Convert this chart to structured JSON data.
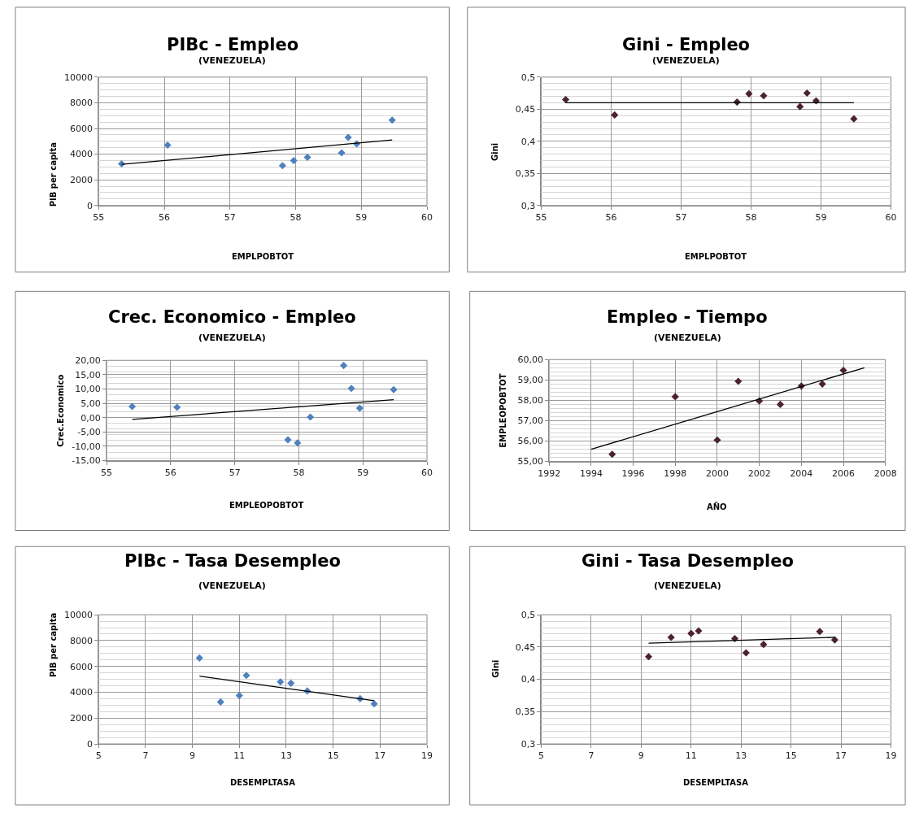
{
  "chart_data": [
    {
      "type": "scatter",
      "title": "PIBc - Empleo",
      "subtitle": "(VENEZUELA)",
      "xlabel": "EMPLPOBTOT",
      "ylabel": "PIB per capita",
      "marker": "diamond",
      "grid": true,
      "series": [
        {
          "color": "#4f81bd",
          "x": [
            55.35,
            56.05,
            57.8,
            57.97,
            58.18,
            58.7,
            58.8,
            58.93,
            59.47
          ],
          "values": [
            3250,
            4700,
            3100,
            3500,
            3750,
            4100,
            5300,
            4800,
            6650
          ]
        },
        {
          "type": "line",
          "marker": "none",
          "color": "#000000",
          "x": [
            55.35,
            59.47
          ],
          "values": [
            3200,
            5100
          ]
        }
      ],
      "xlim": [
        55,
        60
      ],
      "xticks": [
        55,
        56,
        57,
        58,
        59,
        60
      ],
      "ylim": [
        0,
        10000
      ],
      "yticks": [
        0,
        2000,
        4000,
        6000,
        8000,
        10000
      ]
    },
    {
      "type": "scatter",
      "title": "Gini - Empleo",
      "subtitle": "(VENEZUELA)",
      "xlabel": "EMPLPOBTOT",
      "ylabel": "Gini",
      "marker": "diamond",
      "grid": true,
      "series": [
        {
          "color": "#4b2233",
          "x": [
            55.35,
            56.05,
            57.8,
            57.97,
            58.18,
            58.7,
            58.8,
            58.93,
            59.47
          ],
          "values": [
            0.465,
            0.441,
            0.461,
            0.474,
            0.471,
            0.454,
            0.475,
            0.463,
            0.435
          ]
        },
        {
          "type": "line",
          "marker": "none",
          "color": "#000000",
          "x": [
            55.35,
            59.47
          ],
          "values": [
            0.46,
            0.46
          ]
        }
      ],
      "xlim": [
        55,
        60
      ],
      "xticks": [
        55,
        56,
        57,
        58,
        59,
        60
      ],
      "ylim": [
        0.3,
        0.5
      ],
      "yticks": [
        {
          "value": 0.3,
          "label": "0,3"
        },
        {
          "value": 0.35,
          "label": "0,35"
        },
        {
          "value": 0.4,
          "label": "0,4"
        },
        {
          "value": 0.45,
          "label": "0,45"
        },
        {
          "value": 0.5,
          "label": "0,5"
        }
      ]
    },
    {
      "type": "scatter",
      "title": "Crec. Economico - Empleo",
      "subtitle": "(VENEZUELA)",
      "xlabel": "EMPLEOPOBTOT",
      "ylabel": "Crec.Economico",
      "marker": "diamond",
      "grid": true,
      "series": [
        {
          "color": "#4f81bd",
          "x": [
            55.4,
            56.1,
            57.83,
            57.98,
            58.18,
            58.7,
            58.82,
            58.95,
            59.48
          ],
          "values": [
            3.9,
            3.6,
            -7.7,
            -8.8,
            0.2,
            18.2,
            10.2,
            3.3,
            9.8
          ]
        },
        {
          "type": "line",
          "marker": "none",
          "color": "#000000",
          "x": [
            55.4,
            59.48
          ],
          "values": [
            -0.6,
            6.3
          ]
        }
      ],
      "xlim": [
        55,
        60
      ],
      "xticks": [
        55,
        56,
        57,
        58,
        59,
        60
      ],
      "ylim": [
        -15,
        20
      ],
      "yticks": [
        {
          "value": -15,
          "label": "-15,00"
        },
        {
          "value": -10,
          "label": "-10,00"
        },
        {
          "value": -5,
          "label": "-5,00"
        },
        {
          "value": 0,
          "label": "0,00"
        },
        {
          "value": 5,
          "label": "5,00"
        },
        {
          "value": 10,
          "label": "10,00"
        },
        {
          "value": 15,
          "label": "15,00"
        },
        {
          "value": 20,
          "label": "20,00"
        }
      ]
    },
    {
      "type": "scatter",
      "title": "Empleo - Tiempo",
      "subtitle": "(VENEZUELA)",
      "xlabel": "AÑO",
      "ylabel": "EMPLEOPOBTOT",
      "marker": "diamond",
      "grid": true,
      "series": [
        {
          "color": "#4b2233",
          "x": [
            1995,
            1998,
            2000,
            2001,
            2002,
            2003,
            2004,
            2005,
            2006
          ],
          "values": [
            55.35,
            58.18,
            56.05,
            58.93,
            57.97,
            57.8,
            58.7,
            58.8,
            59.47
          ]
        },
        {
          "type": "line",
          "marker": "none",
          "color": "#000000",
          "x": [
            1994,
            2007
          ],
          "values": [
            55.6,
            59.6
          ]
        }
      ],
      "xlim": [
        1992,
        2008
      ],
      "xticks": [
        1992,
        1994,
        1996,
        1998,
        2000,
        2002,
        2004,
        2006,
        2008
      ],
      "ylim": [
        55,
        60
      ],
      "yticks": [
        {
          "value": 55,
          "label": "55,00"
        },
        {
          "value": 56,
          "label": "56,00"
        },
        {
          "value": 57,
          "label": "57,00"
        },
        {
          "value": 58,
          "label": "58,00"
        },
        {
          "value": 59,
          "label": "59,00"
        },
        {
          "value": 60,
          "label": "60,00"
        }
      ]
    },
    {
      "type": "scatter",
      "title": "PIBc - Tasa Desempleo",
      "subtitle": "(VENEZUELA)",
      "xlabel": "DESEMPLTASA",
      "ylabel": "PIB per capita",
      "marker": "diamond",
      "grid": true,
      "series": [
        {
          "color": "#4f81bd",
          "x": [
            9.3,
            10.2,
            11.0,
            11.3,
            12.75,
            13.2,
            13.9,
            16.15,
            16.75
          ],
          "values": [
            6650,
            3250,
            3750,
            5300,
            4800,
            4700,
            4100,
            3500,
            3100
          ]
        },
        {
          "type": "line",
          "marker": "none",
          "color": "#000000",
          "x": [
            9.3,
            16.75
          ],
          "values": [
            5250,
            3350
          ]
        }
      ],
      "xlim": [
        5,
        19
      ],
      "xticks": [
        5,
        7,
        9,
        11,
        13,
        15,
        17,
        19
      ],
      "ylim": [
        0,
        10000
      ],
      "yticks": [
        0,
        2000,
        4000,
        6000,
        8000,
        10000
      ]
    },
    {
      "type": "scatter",
      "title": "Gini - Tasa Desempleo",
      "subtitle": "(VENEZUELA)",
      "xlabel": "DESEMPLTASA",
      "ylabel": "Gini",
      "marker": "diamond",
      "grid": true,
      "series": [
        {
          "color": "#4b2233",
          "x": [
            9.3,
            10.2,
            11.0,
            11.3,
            12.75,
            13.2,
            13.9,
            16.15,
            16.75
          ],
          "values": [
            0.435,
            0.465,
            0.471,
            0.475,
            0.463,
            0.441,
            0.454,
            0.474,
            0.461
          ]
        },
        {
          "type": "line",
          "marker": "none",
          "color": "#000000",
          "x": [
            9.3,
            16.75
          ],
          "values": [
            0.456,
            0.465
          ]
        }
      ],
      "xlim": [
        5,
        19
      ],
      "xticks": [
        5,
        7,
        9,
        11,
        13,
        15,
        17,
        19
      ],
      "ylim": [
        0.3,
        0.5
      ],
      "yticks": [
        {
          "value": 0.3,
          "label": "0,3"
        },
        {
          "value": 0.35,
          "label": "0,35"
        },
        {
          "value": 0.4,
          "label": "0,4"
        },
        {
          "value": 0.45,
          "label": "0,45"
        },
        {
          "value": 0.5,
          "label": "0,5"
        }
      ]
    }
  ]
}
